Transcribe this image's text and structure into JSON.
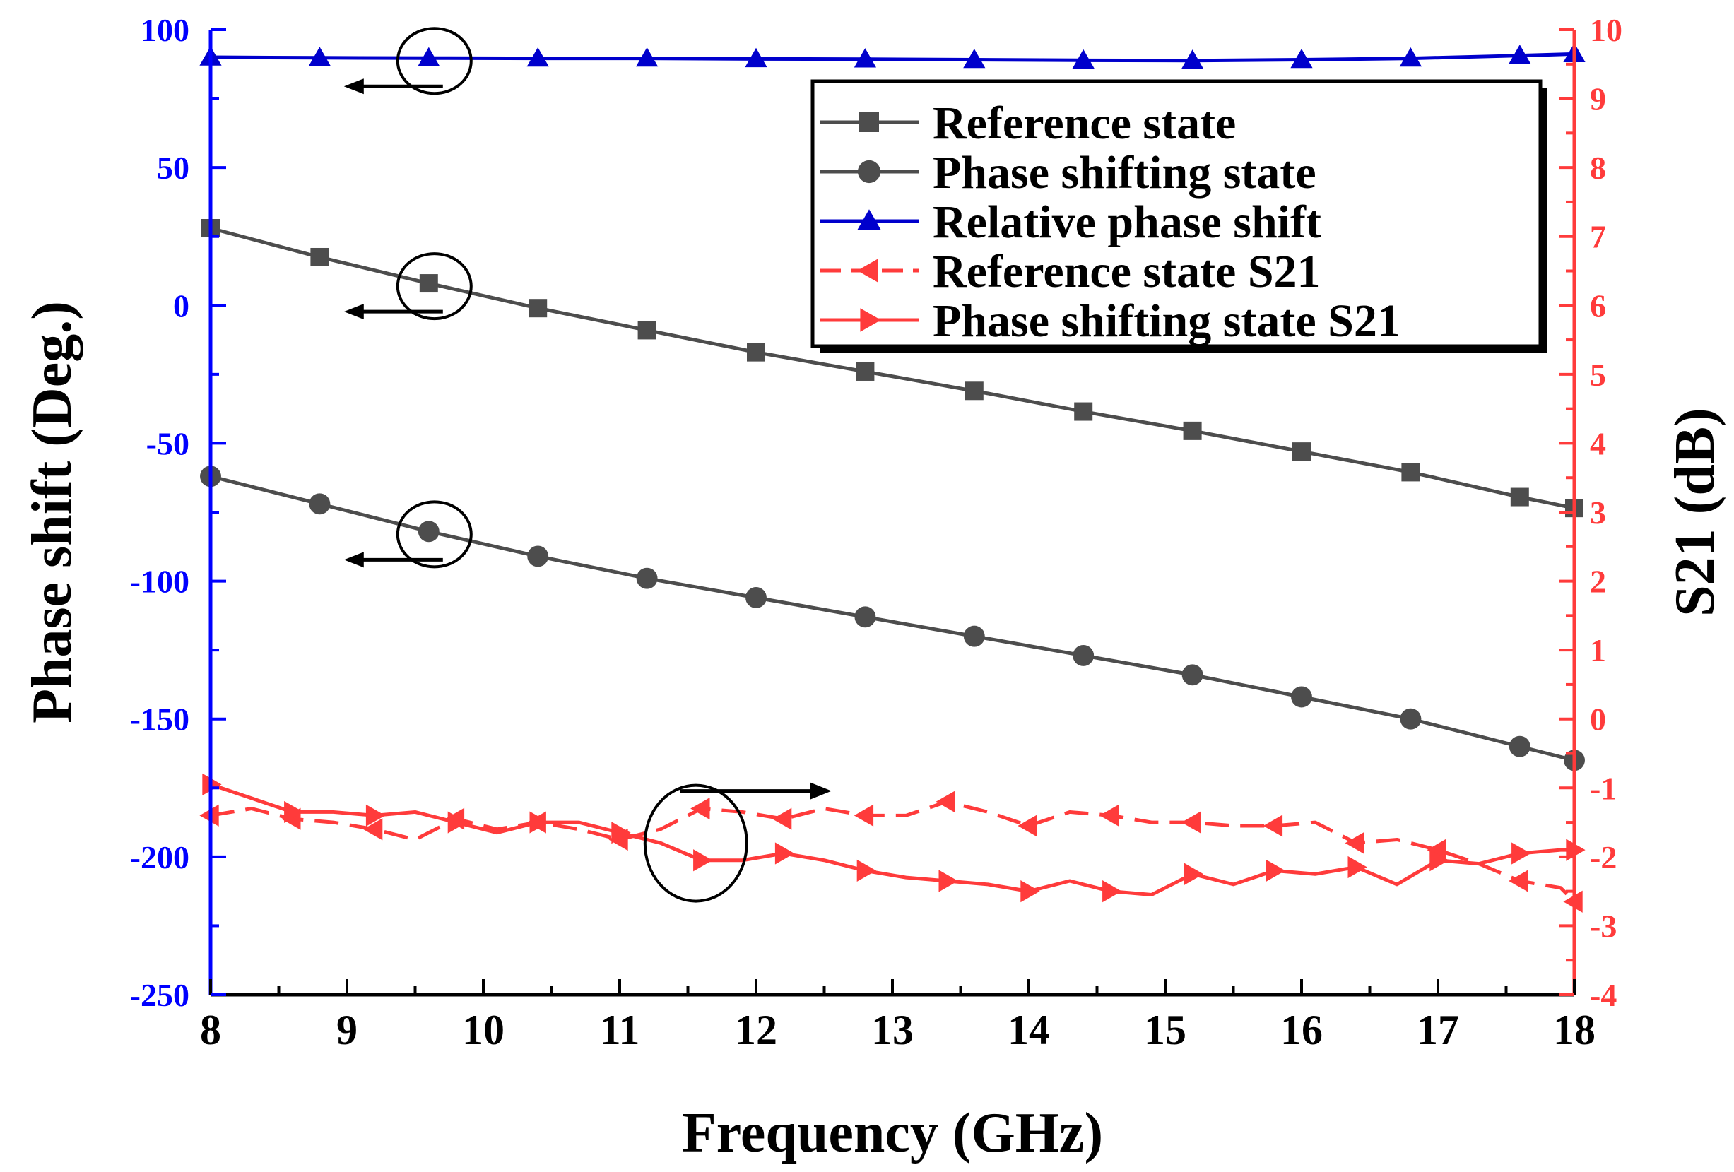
{
  "colors": {
    "left_axis": "#0000ff",
    "right_axis": "#ff3b3b",
    "gray_series": "#4d4d4d",
    "blue_series": "#0000cc",
    "red_series": "#ff3b3b",
    "text": "#000000"
  },
  "chart_data": {
    "type": "line",
    "title": "",
    "xlabel": "Frequency (GHz)",
    "ylabel_left": "Phase shift (Deg.)",
    "ylabel_right": "S21 (dB)",
    "xlim": [
      8,
      18
    ],
    "ylim_left": [
      -250,
      100
    ],
    "ylim_right": [
      -4,
      10
    ],
    "x_ticks": [
      "8",
      "9",
      "10",
      "11",
      "12",
      "13",
      "14",
      "15",
      "16",
      "17",
      "18"
    ],
    "y_left_ticks": [
      "100",
      "50",
      "0",
      "-50",
      "-100",
      "-150",
      "-200",
      "-250"
    ],
    "y_right_ticks": [
      "10",
      "9",
      "8",
      "7",
      "6",
      "5",
      "4",
      "3",
      "2",
      "1",
      "0",
      "-1",
      "-2",
      "-3",
      "-4"
    ],
    "legend_position": "top-right",
    "series": [
      {
        "name": "Reference state",
        "axis": "left",
        "marker": "square",
        "color": "#4d4d4d",
        "dash": false,
        "x": [
          8,
          8.8,
          9.6,
          10.4,
          11.2,
          12,
          12.8,
          13.6,
          14.4,
          15.2,
          16,
          16.8,
          17.6,
          18
        ],
        "y": [
          28,
          17.5,
          8,
          -1,
          -9,
          -17,
          -24,
          -31,
          -38.5,
          -45.5,
          -53,
          -60.5,
          -69.5,
          -73.5
        ],
        "marker_x": [
          8,
          8.8,
          9.6,
          10.4,
          11.2,
          12,
          12.8,
          13.6,
          14.4,
          15.2,
          16,
          16.8,
          17.6,
          18
        ]
      },
      {
        "name": "Phase shifting state",
        "axis": "left",
        "marker": "circle",
        "color": "#4d4d4d",
        "dash": false,
        "x": [
          8,
          8.8,
          9.6,
          10.4,
          11.2,
          12,
          12.8,
          13.6,
          14.4,
          15.2,
          16,
          16.8,
          17.6,
          18
        ],
        "y": [
          -62,
          -72,
          -82,
          -91,
          -99,
          -106,
          -113,
          -120,
          -127,
          -134,
          -142,
          -150,
          -160,
          -165
        ],
        "marker_x": [
          8,
          8.8,
          9.6,
          10.4,
          11.2,
          12,
          12.8,
          13.6,
          14.4,
          15.2,
          16,
          16.8,
          17.6,
          18
        ]
      },
      {
        "name": "Relative phase shift",
        "axis": "left",
        "marker": "triangle-up",
        "color": "#0000cc",
        "dash": false,
        "x": [
          8,
          8.8,
          9.6,
          10.4,
          11.2,
          12,
          12.8,
          13.6,
          14.4,
          15.2,
          16,
          16.8,
          17.6,
          18
        ],
        "y": [
          90,
          89.8,
          89.7,
          89.6,
          89.6,
          89.4,
          89.3,
          89.1,
          88.9,
          88.8,
          89.1,
          89.6,
          90.6,
          91.2
        ],
        "marker_x": [
          8,
          8.8,
          9.6,
          10.4,
          11.2,
          12,
          12.8,
          13.6,
          14.4,
          15.2,
          16,
          16.8,
          17.6,
          18
        ]
      },
      {
        "name": "Reference state S21",
        "axis": "right",
        "marker": "triangle-left",
        "color": "#ff3b3b",
        "dash": true,
        "x": [
          8,
          8.3,
          8.6,
          8.9,
          9.2,
          9.5,
          9.8,
          10.1,
          10.4,
          10.7,
          11,
          11.3,
          11.6,
          11.9,
          12.2,
          12.5,
          12.8,
          13.1,
          13.4,
          13.7,
          14,
          14.3,
          14.6,
          14.9,
          15.2,
          15.5,
          15.8,
          16.1,
          16.4,
          16.7,
          17,
          17.3,
          17.6,
          17.9,
          18
        ],
        "y": [
          -1.4,
          -1.3,
          -1.45,
          -1.5,
          -1.6,
          -1.75,
          -1.45,
          -1.6,
          -1.5,
          -1.6,
          -1.75,
          -1.6,
          -1.3,
          -1.35,
          -1.45,
          -1.3,
          -1.4,
          -1.4,
          -1.2,
          -1.35,
          -1.55,
          -1.35,
          -1.4,
          -1.5,
          -1.5,
          -1.55,
          -1.55,
          -1.5,
          -1.8,
          -1.75,
          -1.9,
          -2.1,
          -2.35,
          -2.45,
          -2.65
        ],
        "marker_x": [
          8,
          8.6,
          9.2,
          9.8,
          10.4,
          11,
          11.6,
          12.2,
          12.8,
          13.4,
          14,
          14.6,
          15.2,
          15.8,
          16.4,
          17,
          17.6,
          18
        ]
      },
      {
        "name": "Phase shifting state S21",
        "axis": "right",
        "marker": "triangle-right",
        "color": "#ff3b3b",
        "dash": false,
        "x": [
          8,
          8.3,
          8.6,
          8.9,
          9.2,
          9.5,
          9.8,
          10.1,
          10.4,
          10.7,
          11,
          11.3,
          11.6,
          11.9,
          12.2,
          12.5,
          12.8,
          13.1,
          13.4,
          13.7,
          14,
          14.3,
          14.6,
          14.9,
          15.2,
          15.5,
          15.8,
          16.1,
          16.4,
          16.7,
          17,
          17.3,
          17.6,
          17.9,
          18
        ],
        "y": [
          -0.95,
          -1.15,
          -1.35,
          -1.35,
          -1.4,
          -1.35,
          -1.5,
          -1.65,
          -1.5,
          -1.5,
          -1.65,
          -1.8,
          -2.05,
          -2.05,
          -1.95,
          -2.05,
          -2.2,
          -2.3,
          -2.35,
          -2.4,
          -2.5,
          -2.35,
          -2.5,
          -2.55,
          -2.25,
          -2.4,
          -2.2,
          -2.25,
          -2.15,
          -2.4,
          -2.05,
          -2.1,
          -1.95,
          -1.9,
          -1.9
        ],
        "marker_x": [
          8,
          8.6,
          9.2,
          9.8,
          10.4,
          11,
          11.6,
          12.2,
          12.8,
          13.4,
          14,
          14.6,
          15.2,
          15.8,
          16.4,
          17,
          17.6,
          18
        ]
      }
    ],
    "annotations": [
      {
        "type": "ellipse-arrow",
        "target": "Relative phase shift",
        "direction": "left",
        "cx_data": 9.6,
        "cy_data": 89.7,
        "axis": "left"
      },
      {
        "type": "ellipse-arrow",
        "target": "Reference state",
        "direction": "left",
        "cx_data": 9.6,
        "cy_data": 8,
        "axis": "left"
      },
      {
        "type": "ellipse-arrow",
        "target": "Phase shifting state",
        "direction": "left",
        "cx_data": 9.6,
        "cy_data": -82,
        "axis": "left"
      },
      {
        "type": "ellipse-arrow",
        "target": "S21 curves",
        "direction": "right",
        "cx_data": 11.6,
        "cy_data": -1.7,
        "axis": "right"
      }
    ]
  }
}
